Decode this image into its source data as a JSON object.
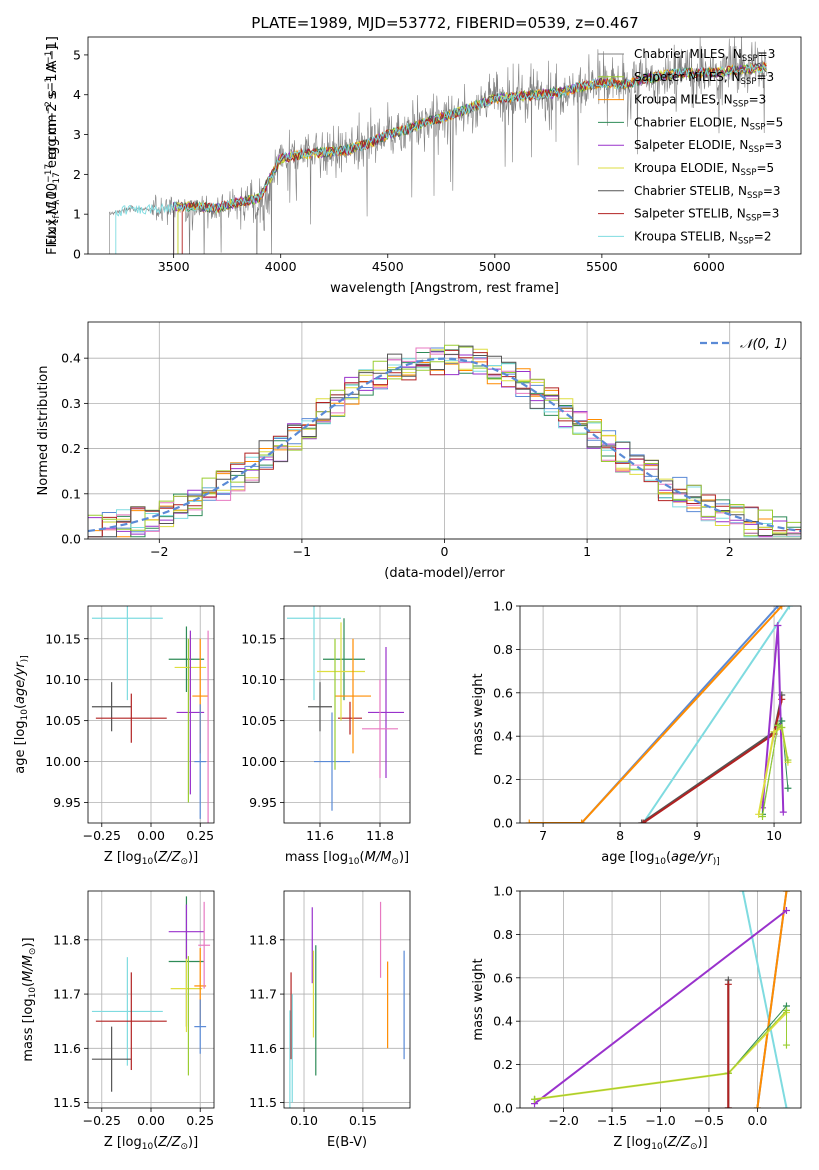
{
  "figure": {
    "title": "PLATE=1989, MJD=53772, FIBERID=0539, z=0.467"
  },
  "models": [
    {
      "name": "Chabrier MILES",
      "nssp": "3",
      "color": "#808080"
    },
    {
      "name": "Salpeter MILES",
      "nssp": "3",
      "color": "#9acd32"
    },
    {
      "name": "Kroupa MILES",
      "nssp": "3",
      "color": "#ff8c00"
    },
    {
      "name": "Chabrier ELODIE",
      "nssp": "5",
      "color": "#2e8b57"
    },
    {
      "name": "Salpeter ELODIE",
      "nssp": "3",
      "color": "#9932cc"
    },
    {
      "name": "Kroupa ELODIE",
      "nssp": "5",
      "color": "#dede40"
    },
    {
      "name": "Chabrier STELIB",
      "nssp": "3",
      "color": "#555555"
    },
    {
      "name": "Salpeter STELIB",
      "nssp": "3",
      "color": "#b22222"
    },
    {
      "name": "Kroupa STELIB",
      "nssp": "2",
      "color": "#7fdbe0"
    }
  ],
  "chart_data": [
    {
      "id": "spectrum",
      "type": "line",
      "xlabel": "wavelength [Angstrom, rest frame]",
      "ylabel_parts": [
        "Flux [",
        "f",
        "λ",
        "10",
        "−17",
        " erg cm",
        "−2",
        " s",
        "−1",
        " A",
        "−1",
        "]"
      ],
      "xlim": [
        3100,
        6430
      ],
      "ylim": [
        0,
        5.45
      ],
      "xticks": [
        3500,
        4000,
        4500,
        5000,
        5500,
        6000
      ],
      "yticks": [
        0,
        1,
        2,
        3,
        4,
        5
      ],
      "legend_position": "upper right",
      "data_color": "#808080",
      "data_start": 3200,
      "data_end": 6270,
      "continuum_x": [
        3200,
        3300,
        3400,
        3500,
        3600,
        3700,
        3800,
        3900,
        4000,
        4100,
        4200,
        4300,
        4400,
        4500,
        4600,
        4700,
        4800,
        4900,
        5000,
        5100,
        5200,
        5300,
        5400,
        5500,
        5600,
        5700,
        5800,
        5900,
        6000,
        6100,
        6200,
        6270
      ],
      "continuum_y": [
        1.0,
        1.15,
        1.12,
        1.18,
        1.2,
        1.15,
        1.3,
        1.4,
        2.4,
        2.5,
        2.55,
        2.6,
        2.75,
        3.0,
        3.15,
        3.35,
        3.5,
        3.7,
        3.9,
        3.95,
        4.0,
        4.05,
        4.2,
        4.3,
        4.25,
        4.4,
        4.5,
        4.55,
        4.55,
        4.6,
        4.65,
        4.7
      ],
      "model_starts": [
        3500,
        3500,
        3500,
        3520,
        3500,
        3520,
        3500,
        3540,
        3230
      ]
    },
    {
      "id": "residuals",
      "type": "histogram",
      "xlabel": "(data-model)/error",
      "ylabel": "Normed distribution",
      "xlim": [
        -2.5,
        2.5
      ],
      "ylim": [
        0,
        0.48
      ],
      "xticks": [
        -2,
        -1,
        0,
        1,
        2
      ],
      "yticks": [
        0.0,
        0.1,
        0.2,
        0.3,
        0.4
      ],
      "legend": "𝒩(0, 1)",
      "legend_position": "upper right",
      "normal_color": "#5a8ad6",
      "bin_width": 0.1
    },
    {
      "id": "age_vs_Z",
      "type": "errorbar",
      "xlabel_parts": [
        "Z [log",
        "10",
        "(",
        "Z/Z",
        "⊙",
        ")]"
      ],
      "ylabel_parts": [
        "age  [log",
        "10",
        "(",
        "age/yr",
        ")]"
      ],
      "xlim": [
        -0.32,
        0.32
      ],
      "ylim": [
        9.925,
        10.19
      ],
      "xticks": [
        -0.25,
        0.0,
        0.25
      ],
      "yticks": [
        9.95,
        10.0,
        10.05,
        10.1,
        10.15
      ],
      "points": [
        {
          "x": -0.12,
          "xerr": 0.18,
          "y": 10.175,
          "yerr": 0.1,
          "color": "#7fdbe0"
        },
        {
          "x": -0.2,
          "xerr": 0.1,
          "y": 10.067,
          "yerr": 0.03,
          "color": "#555555"
        },
        {
          "x": -0.1,
          "xerr": 0.18,
          "y": 10.053,
          "yerr": 0.03,
          "color": "#b22222"
        },
        {
          "x": 0.18,
          "xerr": 0.09,
          "y": 10.125,
          "yerr": 0.04,
          "color": "#2e8b57"
        },
        {
          "x": 0.2,
          "xerr": 0.08,
          "y": 10.115,
          "yerr": 0.04,
          "color": "#dede40"
        },
        {
          "x": 0.25,
          "xerr": 0.04,
          "y": 10.08,
          "yerr": 0.07,
          "color": "#ff8c00"
        },
        {
          "x": 0.2,
          "xerr": 0.07,
          "y": 10.06,
          "yerr": 0.1,
          "color": "#9932cc"
        },
        {
          "x": 0.29,
          "xerr": 0.0,
          "y": 10.04,
          "yerr": 0.12,
          "color": "#e779c1"
        },
        {
          "x": 0.25,
          "xerr": 0.03,
          "y": 10.0,
          "yerr": 0.07,
          "color": "#5a8ad6"
        },
        {
          "x": 0.19,
          "xerr": 0.0,
          "y": 10.05,
          "yerr": 0.1,
          "color": "#9acd32"
        }
      ]
    },
    {
      "id": "age_vs_mass",
      "type": "errorbar",
      "xlabel_parts": [
        "mass [log",
        "10",
        "(",
        "M/M",
        "⊙",
        ")]"
      ],
      "ylabel_parts": [],
      "xlim": [
        11.48,
        11.9
      ],
      "ylim": [
        9.925,
        10.19
      ],
      "xticks": [
        11.6,
        11.8
      ],
      "yticks": [
        9.95,
        10.0,
        10.05,
        10.1,
        10.15
      ],
      "points": [
        {
          "x": 11.58,
          "xerr": 0.09,
          "y": 10.175,
          "yerr": 0.1,
          "color": "#7fdbe0"
        },
        {
          "x": 11.6,
          "xerr": 0.04,
          "y": 10.067,
          "yerr": 0.03,
          "color": "#555555"
        },
        {
          "x": 11.7,
          "xerr": 0.04,
          "y": 10.053,
          "yerr": 0.02,
          "color": "#b22222"
        },
        {
          "x": 11.68,
          "xerr": 0.07,
          "y": 10.125,
          "yerr": 0.05,
          "color": "#2e8b57"
        },
        {
          "x": 11.67,
          "xerr": 0.08,
          "y": 10.11,
          "yerr": 0.06,
          "color": "#dede40"
        },
        {
          "x": 11.71,
          "xerr": 0.06,
          "y": 10.08,
          "yerr": 0.07,
          "color": "#ff8c00"
        },
        {
          "x": 11.82,
          "xerr": 0.06,
          "y": 10.06,
          "yerr": 0.08,
          "color": "#9932cc"
        },
        {
          "x": 11.8,
          "xerr": 0.06,
          "y": 10.04,
          "yerr": 0.06,
          "color": "#e779c1"
        },
        {
          "x": 11.64,
          "xerr": 0.06,
          "y": 10.0,
          "yerr": 0.06,
          "color": "#5a8ad6"
        },
        {
          "x": 11.65,
          "xerr": 0.0,
          "y": 10.07,
          "yerr": 0.08,
          "color": "#9acd32"
        }
      ]
    },
    {
      "id": "weight_vs_age",
      "type": "line",
      "xlabel_parts": [
        "age  [log",
        "10",
        "(",
        "age/yr",
        ")]"
      ],
      "ylabel": "mass weight",
      "xlim": [
        6.7,
        10.35
      ],
      "ylim": [
        0,
        1.0
      ],
      "xticks": [
        7,
        8,
        9,
        10
      ],
      "yticks": [
        0.0,
        0.2,
        0.4,
        0.6,
        0.8,
        1.0
      ],
      "series": [
        {
          "x": [
            7.5,
            10.05
          ],
          "y": [
            0.0,
            1.0
          ],
          "color": "#5a8ad6",
          "width": 2
        },
        {
          "x": [
            6.82,
            7.5,
            10.1
          ],
          "y": [
            0.0,
            0.0,
            1.0
          ],
          "color": "#ff8c00",
          "width": 2
        },
        {
          "x": [
            8.3,
            10.2
          ],
          "y": [
            0.0,
            1.0
          ],
          "color": "#7fdbe0",
          "width": 2
        },
        {
          "x": [
            8.28,
            10.0,
            10.1
          ],
          "y": [
            0.0,
            0.42,
            0.59
          ],
          "color": "#555555",
          "width": 2
        },
        {
          "x": [
            8.3,
            10.0,
            10.1
          ],
          "y": [
            0.0,
            0.41,
            0.57
          ],
          "color": "#b22222",
          "width": 2
        },
        {
          "x": [
            9.85,
            10.05,
            10.12
          ],
          "y": [
            0.07,
            0.91,
            0.05
          ],
          "color": "#9932cc",
          "width": 2
        },
        {
          "x": [
            9.85,
            10.05,
            10.1,
            10.18
          ],
          "y": [
            0.04,
            0.45,
            0.47,
            0.16
          ],
          "color": "#2e8b57",
          "width": 1
        },
        {
          "x": [
            9.8,
            10.0,
            10.1,
            10.18
          ],
          "y": [
            0.04,
            0.42,
            0.44,
            0.28
          ],
          "color": "#dede40",
          "width": 2
        },
        {
          "x": [
            9.85,
            10.05,
            10.1,
            10.18
          ],
          "y": [
            0.03,
            0.45,
            0.44,
            0.29
          ],
          "color": "#9acd32",
          "width": 1
        }
      ]
    },
    {
      "id": "mass_vs_Z",
      "type": "errorbar",
      "xlabel_parts": [
        "Z [log",
        "10",
        "(",
        "Z/Z",
        "⊙",
        ")]"
      ],
      "ylabel_parts": [
        "mass [log",
        "10",
        "(",
        "M/M",
        "⊙",
        ")]"
      ],
      "xlim": [
        -0.32,
        0.32
      ],
      "ylim": [
        11.49,
        11.89
      ],
      "xticks": [
        -0.25,
        0.0,
        0.25
      ],
      "yticks": [
        11.5,
        11.6,
        11.7,
        11.8
      ],
      "points": [
        {
          "x": -0.12,
          "xerr": 0.18,
          "y": 11.668,
          "yerr": 0.1,
          "color": "#7fdbe0"
        },
        {
          "x": -0.2,
          "xerr": 0.1,
          "y": 11.58,
          "yerr": 0.06,
          "color": "#555555"
        },
        {
          "x": -0.1,
          "xerr": 0.18,
          "y": 11.65,
          "yerr": 0.09,
          "color": "#b22222"
        },
        {
          "x": 0.18,
          "xerr": 0.09,
          "y": 11.76,
          "yerr": 0.12,
          "color": "#2e8b57"
        },
        {
          "x": 0.18,
          "xerr": 0.08,
          "y": 11.71,
          "yerr": 0.08,
          "color": "#dede40"
        },
        {
          "x": 0.25,
          "xerr": 0.03,
          "y": 11.715,
          "yerr": 0.07,
          "color": "#ff8c00"
        },
        {
          "x": 0.18,
          "xerr": 0.09,
          "y": 11.815,
          "yerr": 0.05,
          "color": "#9932cc"
        },
        {
          "x": 0.27,
          "xerr": 0.03,
          "y": 11.79,
          "yerr": 0.08,
          "color": "#e779c1"
        },
        {
          "x": 0.25,
          "xerr": 0.03,
          "y": 11.64,
          "yerr": 0.05,
          "color": "#5a8ad6"
        },
        {
          "x": 0.19,
          "xerr": 0.0,
          "y": 11.66,
          "yerr": 0.11,
          "color": "#9acd32"
        }
      ]
    },
    {
      "id": "mass_vs_ebv",
      "type": "errorbar",
      "xlabel": "E(B-V)",
      "ylabel_parts": [],
      "xlim": [
        0.083,
        0.19
      ],
      "ylim": [
        11.49,
        11.89
      ],
      "xticks": [
        0.1,
        0.15
      ],
      "yticks": [
        11.5,
        11.6,
        11.7,
        11.8
      ],
      "points": [
        {
          "x": 0.088,
          "xerr": 0.0,
          "y": 11.58,
          "yerr": 0.09,
          "color": "#7fdbe0"
        },
        {
          "x": 0.089,
          "xerr": 0.0,
          "y": 11.66,
          "yerr": 0.08,
          "color": "#b22222"
        },
        {
          "x": 0.107,
          "xerr": 0.0,
          "y": 11.79,
          "yerr": 0.07,
          "color": "#9932cc"
        },
        {
          "x": 0.11,
          "xerr": 0.0,
          "y": 11.67,
          "yerr": 0.12,
          "color": "#2e8b57"
        },
        {
          "x": 0.108,
          "xerr": 0.0,
          "y": 11.7,
          "yerr": 0.08,
          "color": "#dede40"
        },
        {
          "x": 0.165,
          "xerr": 0.0,
          "y": 11.8,
          "yerr": 0.07,
          "color": "#e779c1"
        },
        {
          "x": 0.171,
          "xerr": 0.0,
          "y": 11.68,
          "yerr": 0.08,
          "color": "#ff8c00"
        },
        {
          "x": 0.185,
          "xerr": 0.0,
          "y": 11.68,
          "yerr": 0.1,
          "color": "#5a8ad6"
        },
        {
          "x": 0.09,
          "xerr": 0.0,
          "y": 11.6,
          "yerr": 0.1,
          "color": "#7fdbe0"
        }
      ]
    },
    {
      "id": "weight_vs_Z",
      "type": "line",
      "xlabel_parts": [
        "Z [log",
        "10",
        "(",
        "Z/Z",
        "⊙",
        ")]"
      ],
      "ylabel": "mass weight",
      "xlim": [
        -2.45,
        0.45
      ],
      "ylim": [
        0,
        1.0
      ],
      "xticks": [
        -2.0,
        -1.5,
        -1.0,
        -0.5,
        0.0
      ],
      "yticks": [
        0.0,
        0.2,
        0.4,
        0.6,
        0.8,
        1.0
      ],
      "series": [
        {
          "x": [
            -0.15,
            0.3
          ],
          "y": [
            1.0,
            0.0
          ],
          "color": "#7fdbe0",
          "width": 2
        },
        {
          "x": [
            0.0,
            0.3
          ],
          "y": [
            0.0,
            1.0
          ],
          "color": "#5a8ad6",
          "width": 2
        },
        {
          "x": [
            0.0,
            0.3
          ],
          "y": [
            0.0,
            1.0
          ],
          "color": "#ff8c00",
          "width": 2
        },
        {
          "x": [
            -2.3,
            0.3
          ],
          "y": [
            0.02,
            0.91
          ],
          "color": "#9932cc",
          "width": 2
        },
        {
          "x": [
            -2.3,
            -0.3,
            0.3
          ],
          "y": [
            0.04,
            0.16,
            0.47
          ],
          "color": "#2e8b57",
          "width": 1
        },
        {
          "x": [
            -2.3,
            -0.3,
            0.3
          ],
          "y": [
            0.04,
            0.16,
            0.44
          ],
          "color": "#dede40",
          "width": 2
        },
        {
          "x": [
            -2.3,
            -0.3,
            0.3,
            0.3
          ],
          "y": [
            0.04,
            0.16,
            0.45,
            0.29
          ],
          "color": "#9acd32",
          "width": 1
        },
        {
          "x": [
            -0.3,
            -0.3
          ],
          "y": [
            0.0,
            0.59
          ],
          "color": "#555555",
          "width": 2
        },
        {
          "x": [
            -0.3,
            -0.3
          ],
          "y": [
            0.0,
            0.57
          ],
          "color": "#b22222",
          "width": 2
        }
      ]
    }
  ]
}
